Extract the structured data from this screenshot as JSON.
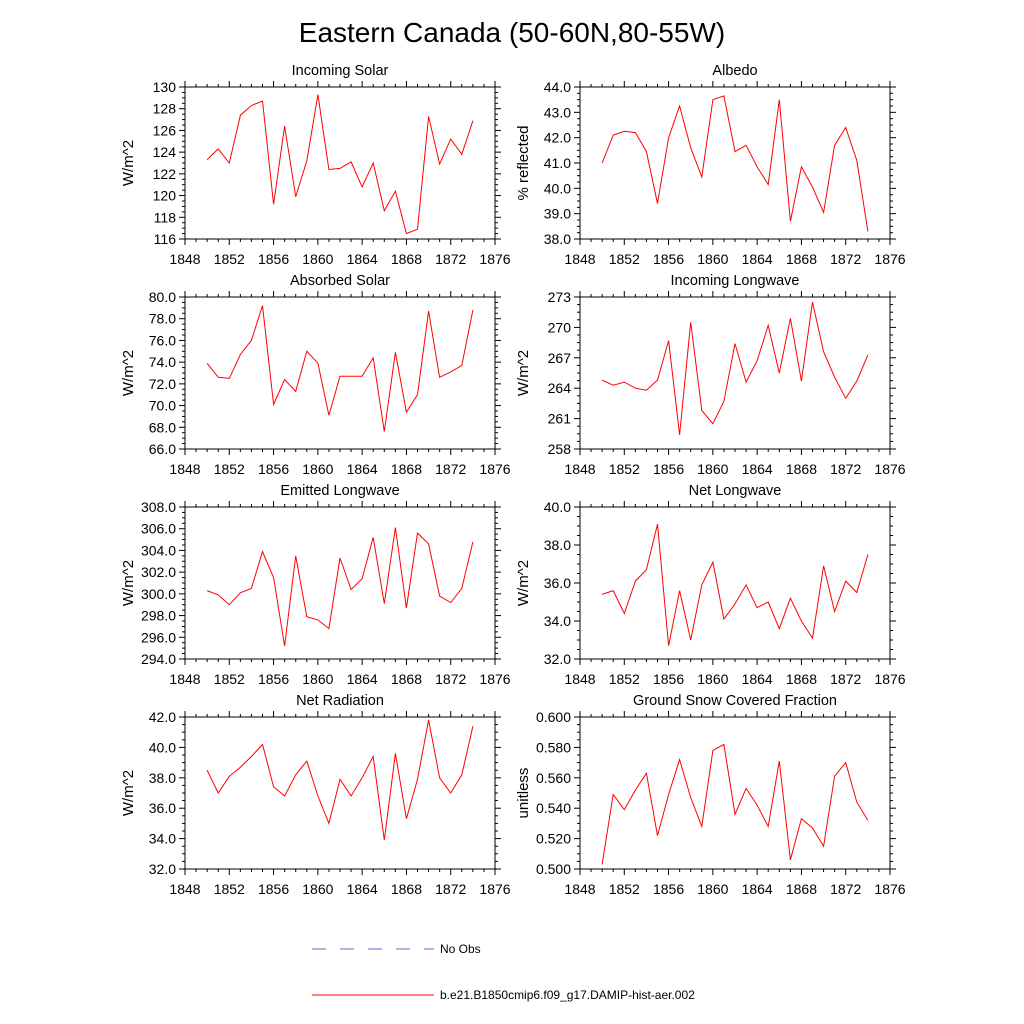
{
  "title": "Eastern Canada (50-60N,80-55W)",
  "colors": {
    "model": "#ff0000",
    "obs": "#6a6acd"
  },
  "legend": {
    "obs_label": "No Obs",
    "model_label": "b.e21.B1850cmip6.f09_g17.DAMIP-hist-aer.002"
  },
  "chart_data": [
    {
      "type": "line",
      "title": "Incoming Solar",
      "ylabel": "W/m^2",
      "xlim": [
        1848,
        1876
      ],
      "xticks": [
        1848,
        1852,
        1856,
        1860,
        1864,
        1868,
        1872,
        1876
      ],
      "ylim": [
        116,
        130
      ],
      "yticks": [
        "116",
        "118",
        "120",
        "122",
        "124",
        "126",
        "128",
        "130"
      ],
      "x": [
        1850,
        1851,
        1852,
        1853,
        1854,
        1855,
        1856,
        1857,
        1858,
        1859,
        1860,
        1861,
        1862,
        1863,
        1864,
        1865,
        1866,
        1867,
        1868,
        1869,
        1870,
        1871,
        1872,
        1873,
        1874
      ],
      "series": [
        {
          "values": [
            123.3,
            124.3,
            123.0,
            127.4,
            128.3,
            128.7,
            119.2,
            126.4,
            119.9,
            123.2,
            129.3,
            122.4,
            122.5,
            123.1,
            120.8,
            123.0,
            118.6,
            120.4,
            116.5,
            116.9,
            127.3,
            122.9,
            125.2,
            123.8,
            126.9
          ]
        }
      ]
    },
    {
      "type": "line",
      "title": "Albedo",
      "ylabel": "% reflected",
      "xlim": [
        1848,
        1876
      ],
      "xticks": [
        1848,
        1852,
        1856,
        1860,
        1864,
        1868,
        1872,
        1876
      ],
      "ylim": [
        38.0,
        44.0
      ],
      "yticks": [
        "38.0",
        "39.0",
        "40.0",
        "41.0",
        "42.0",
        "43.0",
        "44.0"
      ],
      "x": [
        1850,
        1851,
        1852,
        1853,
        1854,
        1855,
        1856,
        1857,
        1858,
        1859,
        1860,
        1861,
        1862,
        1863,
        1864,
        1865,
        1866,
        1867,
        1868,
        1869,
        1870,
        1871,
        1872,
        1873,
        1874
      ],
      "series": [
        {
          "values": [
            41.0,
            42.1,
            42.25,
            42.2,
            41.45,
            39.4,
            42.0,
            43.25,
            41.6,
            40.45,
            43.5,
            43.65,
            41.45,
            41.7,
            40.85,
            40.15,
            43.5,
            38.7,
            40.85,
            40.05,
            39.05,
            41.7,
            42.4,
            41.1,
            38.3
          ]
        }
      ]
    },
    {
      "type": "line",
      "title": "Absorbed Solar",
      "ylabel": "W/m^2",
      "xlim": [
        1848,
        1876
      ],
      "xticks": [
        1848,
        1852,
        1856,
        1860,
        1864,
        1868,
        1872,
        1876
      ],
      "ylim": [
        66.0,
        80.0
      ],
      "yticks": [
        "66.0",
        "68.0",
        "70.0",
        "72.0",
        "74.0",
        "76.0",
        "78.0",
        "80.0"
      ],
      "x": [
        1850,
        1851,
        1852,
        1853,
        1854,
        1855,
        1856,
        1857,
        1858,
        1859,
        1860,
        1861,
        1862,
        1863,
        1864,
        1865,
        1866,
        1867,
        1868,
        1869,
        1870,
        1871,
        1872,
        1873,
        1874
      ],
      "series": [
        {
          "values": [
            73.9,
            72.6,
            72.5,
            74.7,
            76.0,
            79.2,
            70.1,
            72.4,
            71.3,
            75.0,
            73.9,
            69.1,
            72.7,
            72.7,
            72.7,
            74.4,
            67.6,
            74.9,
            69.4,
            71.0,
            78.7,
            72.6,
            73.1,
            73.7,
            78.8
          ]
        }
      ]
    },
    {
      "type": "line",
      "title": "Incoming Longwave",
      "ylabel": "W/m^2",
      "xlim": [
        1848,
        1876
      ],
      "xticks": [
        1848,
        1852,
        1856,
        1860,
        1864,
        1868,
        1872,
        1876
      ],
      "ylim": [
        258,
        273
      ],
      "yticks": [
        "258",
        "261",
        "264",
        "267",
        "270",
        "273"
      ],
      "x": [
        1850,
        1851,
        1852,
        1853,
        1854,
        1855,
        1856,
        1857,
        1858,
        1859,
        1860,
        1861,
        1862,
        1863,
        1864,
        1865,
        1866,
        1867,
        1868,
        1869,
        1870,
        1871,
        1872,
        1873,
        1874
      ],
      "series": [
        {
          "values": [
            264.8,
            264.3,
            264.6,
            264.0,
            263.8,
            264.8,
            268.7,
            259.4,
            270.5,
            261.8,
            260.5,
            262.7,
            268.4,
            264.6,
            266.7,
            270.2,
            265.5,
            270.9,
            264.7,
            272.5,
            267.6,
            265.1,
            263.0,
            264.7,
            267.3
          ]
        }
      ]
    },
    {
      "type": "line",
      "title": "Emitted Longwave",
      "ylabel": "W/m^2",
      "xlim": [
        1848,
        1876
      ],
      "xticks": [
        1848,
        1852,
        1856,
        1860,
        1864,
        1868,
        1872,
        1876
      ],
      "ylim": [
        294.0,
        308.0
      ],
      "yticks": [
        "294.0",
        "296.0",
        "298.0",
        "300.0",
        "302.0",
        "304.0",
        "306.0",
        "308.0"
      ],
      "x": [
        1850,
        1851,
        1852,
        1853,
        1854,
        1855,
        1856,
        1857,
        1858,
        1859,
        1860,
        1861,
        1862,
        1863,
        1864,
        1865,
        1866,
        1867,
        1868,
        1869,
        1870,
        1871,
        1872,
        1873,
        1874
      ],
      "series": [
        {
          "values": [
            300.3,
            299.9,
            299.0,
            300.1,
            300.5,
            303.9,
            301.5,
            295.2,
            303.5,
            297.9,
            297.6,
            296.8,
            303.3,
            300.4,
            301.4,
            305.2,
            299.1,
            306.1,
            298.7,
            305.6,
            304.6,
            299.8,
            299.2,
            300.5,
            304.8
          ]
        }
      ]
    },
    {
      "type": "line",
      "title": "Net Longwave",
      "ylabel": "W/m^2",
      "xlim": [
        1848,
        1876
      ],
      "xticks": [
        1848,
        1852,
        1856,
        1860,
        1864,
        1868,
        1872,
        1876
      ],
      "ylim": [
        32.0,
        40.0
      ],
      "yticks": [
        "32.0",
        "34.0",
        "36.0",
        "38.0",
        "40.0"
      ],
      "x": [
        1850,
        1851,
        1852,
        1853,
        1854,
        1855,
        1856,
        1857,
        1858,
        1859,
        1860,
        1861,
        1862,
        1863,
        1864,
        1865,
        1866,
        1867,
        1868,
        1869,
        1870,
        1871,
        1872,
        1873,
        1874
      ],
      "series": [
        {
          "values": [
            35.4,
            35.6,
            34.4,
            36.1,
            36.7,
            39.1,
            32.7,
            35.6,
            33.0,
            35.9,
            37.1,
            34.1,
            34.9,
            35.9,
            34.7,
            35.0,
            33.6,
            35.2,
            34.0,
            33.1,
            36.9,
            34.5,
            36.1,
            35.5,
            37.5
          ]
        }
      ]
    },
    {
      "type": "line",
      "title": "Net Radiation",
      "ylabel": "W/m^2",
      "xlim": [
        1848,
        1876
      ],
      "xticks": [
        1848,
        1852,
        1856,
        1860,
        1864,
        1868,
        1872,
        1876
      ],
      "ylim": [
        32.0,
        42.0
      ],
      "yticks": [
        "32.0",
        "34.0",
        "36.0",
        "38.0",
        "40.0",
        "42.0"
      ],
      "x": [
        1850,
        1851,
        1852,
        1853,
        1854,
        1855,
        1856,
        1857,
        1858,
        1859,
        1860,
        1861,
        1862,
        1863,
        1864,
        1865,
        1866,
        1867,
        1868,
        1869,
        1870,
        1871,
        1872,
        1873,
        1874
      ],
      "series": [
        {
          "values": [
            38.5,
            37.0,
            38.1,
            38.7,
            39.4,
            40.2,
            37.4,
            36.8,
            38.2,
            39.1,
            36.8,
            35.0,
            37.9,
            36.8,
            38.0,
            39.4,
            33.9,
            39.6,
            35.3,
            37.9,
            41.8,
            38.0,
            37.0,
            38.2,
            41.4
          ]
        }
      ]
    },
    {
      "type": "line",
      "title": "Ground Snow Covered Fraction",
      "ylabel": "unitless",
      "xlim": [
        1848,
        1876
      ],
      "xticks": [
        1848,
        1852,
        1856,
        1860,
        1864,
        1868,
        1872,
        1876
      ],
      "ylim": [
        0.5,
        0.6
      ],
      "yticks": [
        "0.500",
        "0.520",
        "0.540",
        "0.560",
        "0.580",
        "0.600"
      ],
      "x": [
        1850,
        1851,
        1852,
        1853,
        1854,
        1855,
        1856,
        1857,
        1858,
        1859,
        1860,
        1861,
        1862,
        1863,
        1864,
        1865,
        1866,
        1867,
        1868,
        1869,
        1870,
        1871,
        1872,
        1873,
        1874
      ],
      "series": [
        {
          "values": [
            0.503,
            0.549,
            0.539,
            0.552,
            0.563,
            0.522,
            0.549,
            0.572,
            0.547,
            0.528,
            0.578,
            0.582,
            0.536,
            0.553,
            0.542,
            0.528,
            0.571,
            0.506,
            0.533,
            0.527,
            0.515,
            0.561,
            0.57,
            0.544,
            0.532
          ]
        }
      ]
    }
  ]
}
